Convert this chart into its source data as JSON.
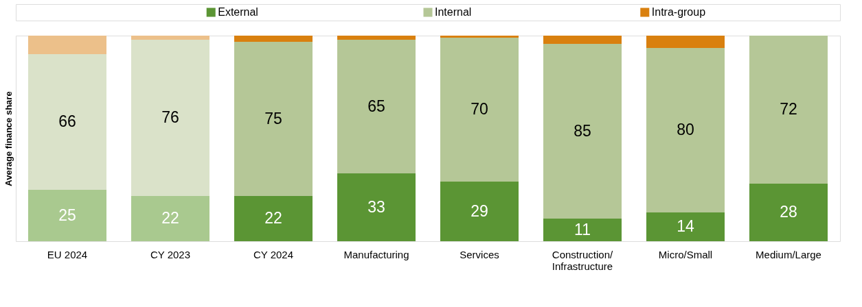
{
  "chart_data": {
    "type": "bar",
    "stacked": true,
    "ylabel": "Average finance share",
    "legend": "top",
    "categories": [
      "EU 2024",
      "CY 2023",
      "CY 2024",
      "Manufacturing",
      "Services",
      "Construction/ Infrastructure",
      "Micro/Small",
      "Medium/Large"
    ],
    "series": [
      {
        "name": "External",
        "color": "#5b9534",
        "colors": [
          "#a9c98f",
          "#a9c98f",
          "#5b9534",
          "#5b9534",
          "#5b9534",
          "#5b9534",
          "#5b9534",
          "#5b9534"
        ],
        "values": [
          25,
          22,
          22,
          33,
          29,
          11,
          14,
          28
        ],
        "value_labels": [
          "25",
          "22",
          "22",
          "33",
          "29",
          "11",
          "14",
          "28"
        ]
      },
      {
        "name": "Internal",
        "color": "#b5c797",
        "colors": [
          "#dae2c9",
          "#dae2c9",
          "#b5c797",
          "#b5c797",
          "#b5c797",
          "#b5c797",
          "#b5c797",
          "#b5c797"
        ],
        "values": [
          66,
          76,
          75,
          65,
          70,
          85,
          80,
          72
        ],
        "value_labels": [
          "66",
          "76",
          "75",
          "65",
          "70",
          "85",
          "80",
          "72"
        ]
      },
      {
        "name": "Intra-group",
        "color": "#d9800f",
        "colors": [
          "#ecc08a",
          "#ecc08a",
          "#d9800f",
          "#d9800f",
          "#d9800f",
          "#d9800f",
          "#d9800f",
          "#d9800f"
        ],
        "values": [
          9,
          2,
          3,
          2,
          1,
          4,
          6,
          0
        ],
        "value_labels": [
          null,
          null,
          null,
          null,
          null,
          null,
          null,
          null
        ]
      }
    ]
  }
}
